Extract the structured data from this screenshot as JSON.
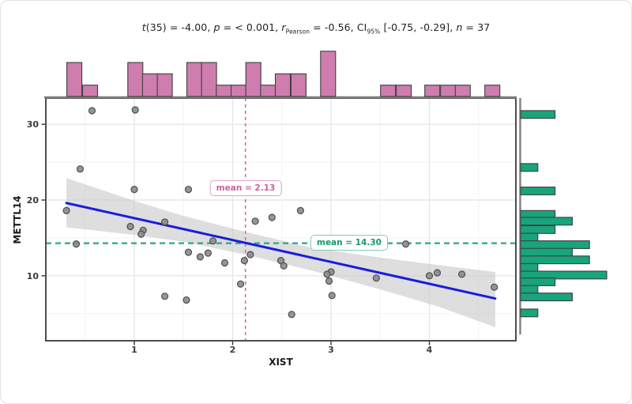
{
  "title": {
    "text": "t(35) = -4.00, p = < 0.001, r_Pearson = -0.56, CI_95% [-0.75, -0.29], n = 37",
    "segments": [
      {
        "text": "t",
        "italic": true
      },
      {
        "text": "(35) = -4.00, "
      },
      {
        "text": "p",
        "italic": true
      },
      {
        "text": " = < 0.001, "
      },
      {
        "text": "r",
        "italic": true
      },
      {
        "text": "Pearson",
        "sub": true
      },
      {
        "text": " = -0.56, CI"
      },
      {
        "text": "95%",
        "sub": true
      },
      {
        "text": " [-0.75, -0.29], "
      },
      {
        "text": "n",
        "italic": true
      },
      {
        "text": " = 37"
      }
    ]
  },
  "axes": {
    "x": {
      "label": "XIST",
      "ticks": [
        1,
        2,
        3,
        4
      ],
      "minor_ticks": [
        0.5,
        1.5,
        2.5,
        3.5,
        4.5
      ],
      "range": [
        0.1,
        4.88
      ]
    },
    "y": {
      "label": "METTL14",
      "ticks": [
        10,
        20,
        30
      ],
      "minor_ticks": [
        5,
        15,
        25
      ],
      "range": [
        1.4,
        33.5
      ]
    }
  },
  "annotations": {
    "mean_x": {
      "label": "mean = 2.13",
      "value": 2.13,
      "color": "#c9629f"
    },
    "mean_y": {
      "label": "mean = 14.30",
      "value": 14.3,
      "color": "#16976f"
    }
  },
  "colors": {
    "regression_line": "#1b1be0",
    "ci_band": "#c9c9c9",
    "point_fill": "#8a8a8a",
    "point_stroke": "#4f4f4f",
    "top_hist_fill": "#ce7dae",
    "right_hist_fill": "#18a47c",
    "hist_stroke": "#3f3f3f",
    "mean_x_line": "#d06ca2",
    "mean_y_line": "#27a97d",
    "panel_border": "#4d4d4d",
    "axis_line": "#808080",
    "grid_major": "#e7e7e7",
    "grid_minor": "#f3f3f3",
    "tick_text": "#3a3a3a"
  },
  "chart_data": {
    "type": "scatter",
    "xlabel": "XIST",
    "ylabel": "METTL14",
    "n": 37,
    "points": [
      [
        0.57,
        31.8
      ],
      [
        1.01,
        31.9
      ],
      [
        0.45,
        24.1
      ],
      [
        1.0,
        21.4
      ],
      [
        1.55,
        21.4
      ],
      [
        0.31,
        18.6
      ],
      [
        2.4,
        17.7
      ],
      [
        2.69,
        18.6
      ],
      [
        0.41,
        14.2
      ],
      [
        0.96,
        16.5
      ],
      [
        1.09,
        16.0
      ],
      [
        1.07,
        15.5
      ],
      [
        1.31,
        17.1
      ],
      [
        1.55,
        13.1
      ],
      [
        1.67,
        12.5
      ],
      [
        1.75,
        13.0
      ],
      [
        1.8,
        14.6
      ],
      [
        1.92,
        11.7
      ],
      [
        2.08,
        8.9
      ],
      [
        2.12,
        12.0
      ],
      [
        2.18,
        12.8
      ],
      [
        2.23,
        17.2
      ],
      [
        1.31,
        7.3
      ],
      [
        1.53,
        6.8
      ],
      [
        2.49,
        12.0
      ],
      [
        2.52,
        11.3
      ],
      [
        3.0,
        10.5
      ],
      [
        2.98,
        9.3
      ],
      [
        3.01,
        7.4
      ],
      [
        3.76,
        14.2
      ],
      [
        3.46,
        9.7
      ],
      [
        4.0,
        10.0
      ],
      [
        4.08,
        10.4
      ],
      [
        4.33,
        10.2
      ],
      [
        4.66,
        8.5
      ],
      [
        2.6,
        4.9
      ],
      [
        2.96,
        10.2
      ]
    ],
    "regression_line": {
      "x1": 0.31,
      "y1": 19.6,
      "x2": 4.67,
      "y2": 7.0
    },
    "ci_band": {
      "upper": [
        [
          0.31,
          22.9
        ],
        [
          1.0,
          19.9
        ],
        [
          1.5,
          17.9
        ],
        [
          2.13,
          15.8
        ],
        [
          2.8,
          13.7
        ],
        [
          3.5,
          12.4
        ],
        [
          4.1,
          11.4
        ],
        [
          4.67,
          10.5
        ]
      ],
      "lower": [
        [
          0.31,
          16.4
        ],
        [
          1.0,
          15.4
        ],
        [
          1.5,
          14.5
        ],
        [
          2.13,
          12.8
        ],
        [
          2.8,
          10.7
        ],
        [
          3.5,
          8.2
        ],
        [
          4.1,
          5.9
        ],
        [
          4.67,
          3.2
        ]
      ]
    },
    "marginal_top": {
      "type": "histogram",
      "binwidth": 0.1525,
      "bins": [
        {
          "x": 0.39,
          "count": 3
        },
        {
          "x": 0.55,
          "count": 1
        },
        {
          "x": 1.01,
          "count": 3
        },
        {
          "x": 1.16,
          "count": 2
        },
        {
          "x": 1.31,
          "count": 2
        },
        {
          "x": 1.61,
          "count": 3
        },
        {
          "x": 1.76,
          "count": 3
        },
        {
          "x": 1.91,
          "count": 1
        },
        {
          "x": 2.06,
          "count": 1
        },
        {
          "x": 2.21,
          "count": 3
        },
        {
          "x": 2.36,
          "count": 1
        },
        {
          "x": 2.51,
          "count": 2
        },
        {
          "x": 2.67,
          "count": 2
        },
        {
          "x": 2.97,
          "count": 4
        },
        {
          "x": 3.58,
          "count": 1
        },
        {
          "x": 3.74,
          "count": 1
        },
        {
          "x": 4.03,
          "count": 1
        },
        {
          "x": 4.19,
          "count": 1
        },
        {
          "x": 4.34,
          "count": 1
        },
        {
          "x": 4.64,
          "count": 1
        }
      ]
    },
    "marginal_right": {
      "type": "histogram",
      "binwidth": 1.02,
      "bins": [
        {
          "y": 31.3,
          "count": 2
        },
        {
          "y": 24.3,
          "count": 1
        },
        {
          "y": 21.2,
          "count": 2
        },
        {
          "y": 18.1,
          "count": 2
        },
        {
          "y": 17.2,
          "count": 3
        },
        {
          "y": 16.1,
          "count": 2
        },
        {
          "y": 15.1,
          "count": 1
        },
        {
          "y": 14.1,
          "count": 4
        },
        {
          "y": 13.1,
          "count": 3
        },
        {
          "y": 12.1,
          "count": 4
        },
        {
          "y": 11.1,
          "count": 1
        },
        {
          "y": 10.1,
          "count": 5
        },
        {
          "y": 9.2,
          "count": 2
        },
        {
          "y": 8.2,
          "count": 1
        },
        {
          "y": 7.2,
          "count": 3
        },
        {
          "y": 5.1,
          "count": 1
        }
      ]
    }
  }
}
